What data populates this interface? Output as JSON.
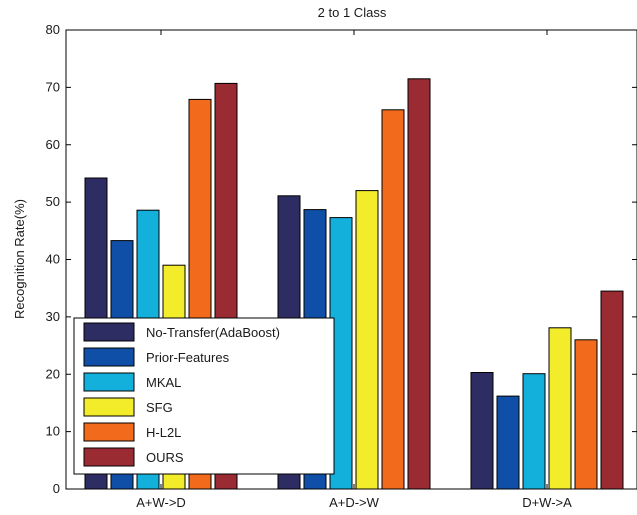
{
  "chart_data": {
    "type": "bar",
    "title": "2 to 1 Class",
    "xlabel": "",
    "ylabel": "Recognition Rate(%)",
    "ylim": [
      0,
      80
    ],
    "yticks": [
      0,
      10,
      20,
      30,
      40,
      50,
      60,
      70,
      80
    ],
    "grid": false,
    "legend_position": "bottom-left",
    "categories": [
      "A+W->D",
      "A+D->W",
      "D+W->A"
    ],
    "series": [
      {
        "name": "No-Transfer(AdaBoost)",
        "color": "#2d2d63",
        "values": [
          54.2,
          51.1,
          20.3
        ]
      },
      {
        "name": "Prior-Features",
        "color": "#0f4fa8",
        "values": [
          43.3,
          48.7,
          16.2
        ]
      },
      {
        "name": "MKAL",
        "color": "#14b0dc",
        "values": [
          48.6,
          47.3,
          20.1
        ]
      },
      {
        "name": "SFG",
        "color": "#f2ec2a",
        "values": [
          39.0,
          52.0,
          28.1
        ]
      },
      {
        "name": "H-L2L",
        "color": "#f26b1c",
        "values": [
          67.9,
          66.1,
          26.0
        ]
      },
      {
        "name": "OURS",
        "color": "#9b2b33",
        "values": [
          70.7,
          71.5,
          34.5
        ]
      }
    ]
  }
}
